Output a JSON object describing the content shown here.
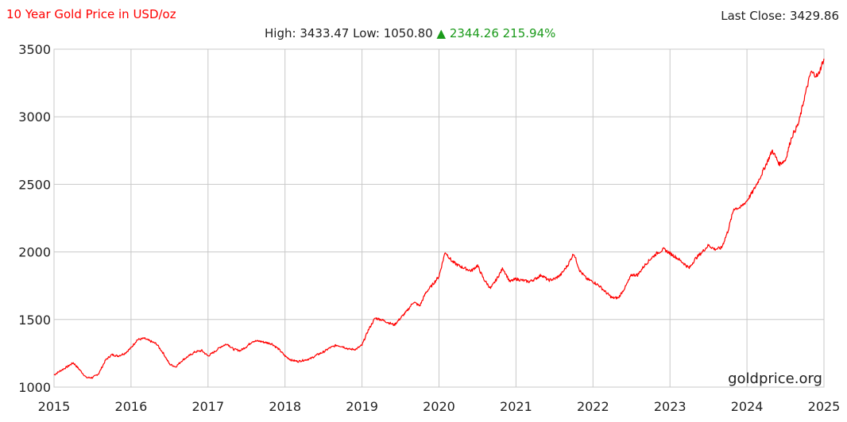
{
  "header": {
    "title": "10 Year Gold Price in USD/oz",
    "last_close_label": "Last Close:",
    "last_close_value": "3429.86",
    "high_label": "High:",
    "high_value": "3433.47",
    "low_label": "Low:",
    "low_value": "1050.80",
    "change_arrow": "▲",
    "change_value": "2344.26",
    "change_pct": "215.94%"
  },
  "colors": {
    "title": "#ff0000",
    "line": "#ff0000",
    "change": "#1a9a1a",
    "grid": "#c8c8c8"
  },
  "watermark": "goldprice.org",
  "chart_data": {
    "type": "line",
    "title": "10 Year Gold Price in USD/oz",
    "xlabel": "",
    "ylabel": "",
    "xlim": [
      2015,
      2025
    ],
    "ylim": [
      1000,
      3500
    ],
    "x_ticks": [
      "2015",
      "2016",
      "2017",
      "2018",
      "2019",
      "2020",
      "2021",
      "2022",
      "2023",
      "2024",
      "2025"
    ],
    "y_ticks": [
      "1000",
      "1500",
      "2000",
      "2500",
      "3000",
      "3500"
    ],
    "grid": true,
    "series": [
      {
        "x": [
          2015.0,
          2015.08,
          2015.17,
          2015.25,
          2015.33,
          2015.42,
          2015.5,
          2015.58,
          2015.67,
          2015.75,
          2015.83,
          2015.92,
          2016.0,
          2016.08,
          2016.17,
          2016.25,
          2016.33,
          2016.42,
          2016.5,
          2016.58,
          2016.67,
          2016.75,
          2016.83,
          2016.92,
          2017.0,
          2017.08,
          2017.17,
          2017.25,
          2017.33,
          2017.42,
          2017.5,
          2017.58,
          2017.67,
          2017.75,
          2017.83,
          2017.92,
          2018.0,
          2018.08,
          2018.17,
          2018.25,
          2018.33,
          2018.42,
          2018.5,
          2018.58,
          2018.67,
          2018.75,
          2018.83,
          2018.92,
          2019.0,
          2019.08,
          2019.17,
          2019.25,
          2019.33,
          2019.42,
          2019.5,
          2019.58,
          2019.67,
          2019.75,
          2019.83,
          2019.92,
          2020.0,
          2020.08,
          2020.17,
          2020.25,
          2020.33,
          2020.42,
          2020.5,
          2020.58,
          2020.67,
          2020.75,
          2020.83,
          2020.92,
          2021.0,
          2021.08,
          2021.17,
          2021.25,
          2021.33,
          2021.42,
          2021.5,
          2021.58,
          2021.67,
          2021.75,
          2021.83,
          2021.92,
          2022.0,
          2022.08,
          2022.17,
          2022.25,
          2022.33,
          2022.42,
          2022.5,
          2022.58,
          2022.67,
          2022.75,
          2022.83,
          2022.92,
          2023.0,
          2023.08,
          2023.17,
          2023.25,
          2023.33,
          2023.42,
          2023.5,
          2023.58,
          2023.67,
          2023.75,
          2023.83,
          2023.92,
          2024.0,
          2024.08,
          2024.17,
          2024.25,
          2024.33,
          2024.42,
          2024.5,
          2024.58,
          2024.67,
          2024.75,
          2024.83,
          2024.92,
          2025.0
        ],
        "values": [
          1090,
          1120,
          1150,
          1180,
          1130,
          1070,
          1070,
          1100,
          1200,
          1240,
          1230,
          1250,
          1290,
          1350,
          1360,
          1340,
          1320,
          1250,
          1170,
          1150,
          1200,
          1230,
          1260,
          1270,
          1230,
          1260,
          1300,
          1320,
          1280,
          1270,
          1300,
          1340,
          1340,
          1330,
          1320,
          1280,
          1230,
          1200,
          1190,
          1200,
          1210,
          1240,
          1260,
          1290,
          1310,
          1300,
          1280,
          1280,
          1310,
          1420,
          1510,
          1500,
          1480,
          1460,
          1510,
          1560,
          1630,
          1600,
          1700,
          1760,
          1820,
          2000,
          1930,
          1900,
          1880,
          1860,
          1900,
          1800,
          1730,
          1800,
          1880,
          1780,
          1800,
          1790,
          1780,
          1800,
          1830,
          1790,
          1800,
          1830,
          1900,
          1990,
          1860,
          1800,
          1780,
          1750,
          1700,
          1660,
          1660,
          1740,
          1830,
          1830,
          1900,
          1950,
          1990,
          2020,
          1990,
          1960,
          1920,
          1880,
          1950,
          2000,
          2050,
          2020,
          2030,
          2150,
          2320,
          2330,
          2380,
          2450,
          2550,
          2650,
          2750,
          2650,
          2680,
          2850,
          2950,
          3150,
          3330,
          3300,
          3429.86
        ]
      }
    ]
  }
}
